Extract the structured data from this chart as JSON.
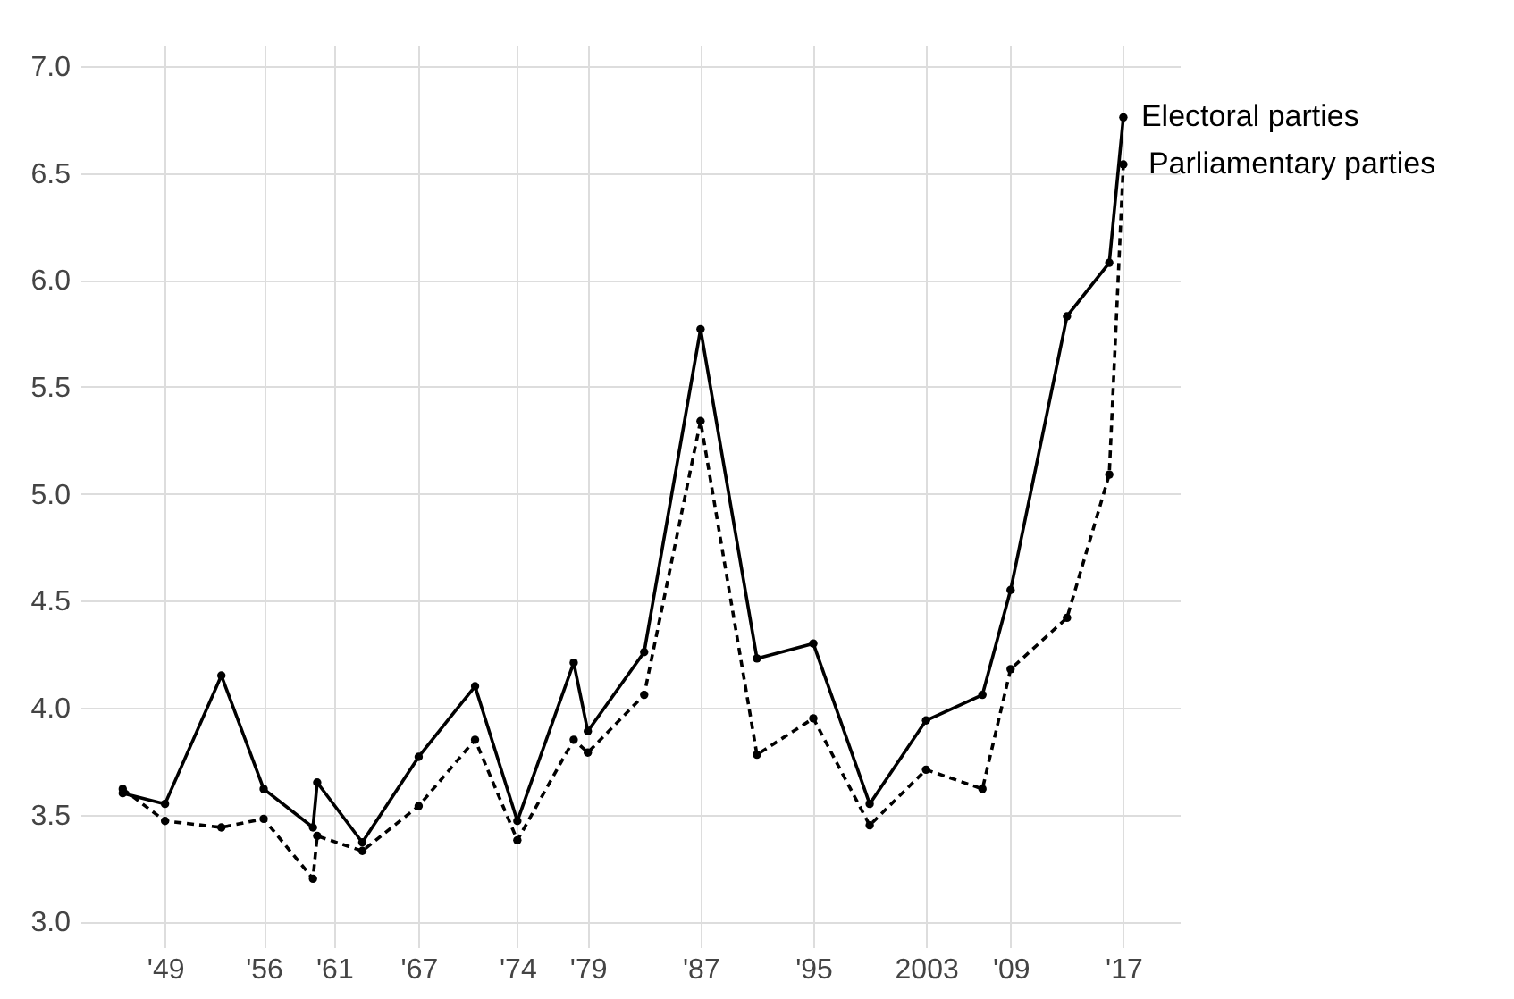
{
  "chart_data": {
    "type": "line",
    "x": [
      1946,
      1949,
      1953,
      1956,
      1959.5,
      1959.8,
      1963,
      1967,
      1971,
      1974,
      1978,
      1979,
      1983,
      1987,
      1991,
      1995,
      1999,
      2003,
      2007,
      2009,
      2013,
      2016,
      2017
    ],
    "series": [
      {
        "name": "Electoral parties",
        "color": "#000000",
        "line_style": "solid",
        "values": [
          3.6,
          3.55,
          4.15,
          3.62,
          3.44,
          3.65,
          3.37,
          3.77,
          4.1,
          3.47,
          4.21,
          3.89,
          4.26,
          5.77,
          4.23,
          4.3,
          3.55,
          3.94,
          4.06,
          4.55,
          5.83,
          6.08,
          6.76
        ]
      },
      {
        "name": "Parliamentary parties",
        "color": "#000000",
        "line_style": "dashed",
        "values": [
          3.62,
          3.47,
          3.44,
          3.48,
          3.2,
          3.4,
          3.33,
          3.54,
          3.85,
          3.38,
          3.85,
          3.79,
          4.06,
          5.34,
          3.78,
          3.95,
          3.45,
          3.71,
          3.62,
          4.18,
          4.42,
          5.09,
          6.54
        ]
      }
    ],
    "xlim": [
      1943,
      2021
    ],
    "xticks": [
      {
        "value": 1949,
        "label": "'49"
      },
      {
        "value": 1956,
        "label": "'56"
      },
      {
        "value": 1961,
        "label": "'61"
      },
      {
        "value": 1967,
        "label": "'67"
      },
      {
        "value": 1974,
        "label": "'74"
      },
      {
        "value": 1979,
        "label": "'79"
      },
      {
        "value": 1987,
        "label": "'87"
      },
      {
        "value": 1995,
        "label": "'95"
      },
      2003,
      {
        "value": 2009,
        "label": "'09"
      },
      {
        "value": 2017,
        "label": "'17"
      }
    ],
    "ylim": [
      2.88,
      7.1
    ],
    "yticks": [
      {
        "value": 3,
        "label": "3.0"
      },
      3.5,
      {
        "value": 4,
        "label": "4.0"
      },
      4.5,
      {
        "value": 5,
        "label": "5.0"
      },
      5.5,
      {
        "value": 6,
        "label": "6.0"
      },
      6.5,
      {
        "value": 7,
        "label": "7.0"
      }
    ],
    "grid": true,
    "legend": false,
    "marker": "circle"
  }
}
